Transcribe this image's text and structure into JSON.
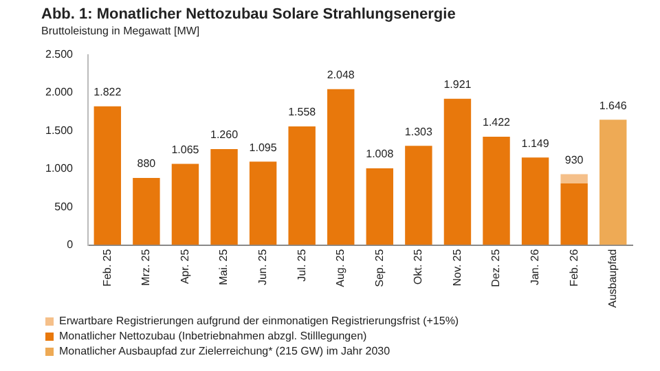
{
  "chart_data": {
    "type": "bar",
    "title": "Abb. 1: Monatlicher Nettozubau Solare Strahlungsenergie",
    "subtitle": "Bruttoleistung in Megawatt [MW]",
    "categories": [
      "Feb. 25",
      "Mrz. 25",
      "Apr. 25",
      "Mai. 25",
      "Jun. 25",
      "Jul. 25",
      "Aug. 25",
      "Sep. 25",
      "Okt. 25",
      "Nov. 25",
      "Dez. 25",
      "Jan. 26",
      "Feb. 26",
      "Ausbaupfad"
    ],
    "series": [
      {
        "name": "Monatlicher Nettozubau (Inbetriebnahmen abzgl. Stilllegungen)",
        "color": "#e8780c",
        "values": [
          1822,
          880,
          1065,
          1260,
          1095,
          1558,
          2048,
          1008,
          1303,
          1921,
          1422,
          1149,
          809,
          null
        ]
      },
      {
        "name": "Erwartbare Registrierungen aufgrund der einmonatigen Registrierungsfrist (+15%)",
        "color": "#f5c08a",
        "values": [
          null,
          null,
          null,
          null,
          null,
          null,
          null,
          null,
          null,
          null,
          null,
          null,
          121,
          null
        ]
      },
      {
        "name": "Monatlicher Ausbaupfad zur Zielerreichung* (215 GW) im Jahr 2030",
        "color": "#eeaa55",
        "values": [
          null,
          null,
          null,
          null,
          null,
          null,
          null,
          null,
          null,
          null,
          null,
          null,
          null,
          1646
        ]
      }
    ],
    "stacked": true,
    "totals": [
      "1.822",
      "880",
      "1.065",
      "1.260",
      "1.095",
      "1.558",
      "2.048",
      "1.008",
      "1.303",
      "1.921",
      "1.422",
      "1.149",
      "930",
      "1.646"
    ],
    "ylim": [
      0,
      2500
    ],
    "yticks": [
      {
        "value": 0,
        "label": "0"
      },
      {
        "value": 500,
        "label": "500"
      },
      {
        "value": 1000,
        "label": "1.000"
      },
      {
        "value": 1500,
        "label": "1.500"
      },
      {
        "value": 2000,
        "label": "2.000"
      },
      {
        "value": 2500,
        "label": "2.500"
      }
    ],
    "grid": false,
    "legend": "bottom"
  }
}
